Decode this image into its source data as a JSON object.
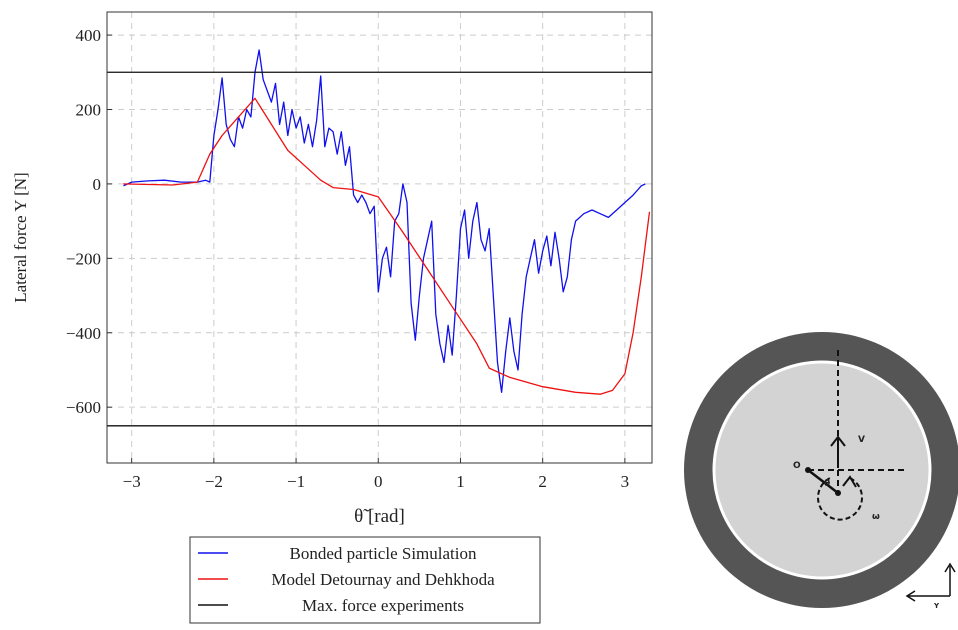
{
  "chart_data": {
    "type": "line",
    "xlabel": "θ̃ [rad]",
    "ylabel": "Lateral force Y [N]",
    "xlim": [
      -3.3,
      3.33
    ],
    "ylim": [
      -750,
      462
    ],
    "xticks": [
      {
        "value": -3,
        "label": "−3"
      },
      {
        "value": -2,
        "label": "−2"
      },
      {
        "value": -1,
        "label": "−1"
      },
      0,
      1,
      2,
      3
    ],
    "yticks": [
      {
        "value": -600,
        "label": "−600"
      },
      {
        "value": -400,
        "label": "−400"
      },
      {
        "value": -200,
        "label": "−200"
      },
      0,
      200,
      400
    ],
    "grid": true,
    "legend": "below",
    "series": [
      {
        "name": "Bonded particle Simulation",
        "color": "#1010ee",
        "x": [
          -3.1,
          -3.0,
          -2.8,
          -2.6,
          -2.4,
          -2.2,
          -2.1,
          -2.05,
          -2.0,
          -1.95,
          -1.9,
          -1.85,
          -1.8,
          -1.75,
          -1.7,
          -1.65,
          -1.6,
          -1.55,
          -1.5,
          -1.45,
          -1.4,
          -1.35,
          -1.3,
          -1.25,
          -1.2,
          -1.15,
          -1.1,
          -1.05,
          -1.0,
          -0.95,
          -0.9,
          -0.85,
          -0.8,
          -0.75,
          -0.7,
          -0.65,
          -0.6,
          -0.55,
          -0.5,
          -0.45,
          -0.4,
          -0.35,
          -0.3,
          -0.25,
          -0.2,
          -0.15,
          -0.1,
          -0.05,
          0,
          0.05,
          0.1,
          0.15,
          0.2,
          0.25,
          0.3,
          0.35,
          0.4,
          0.45,
          0.5,
          0.55,
          0.6,
          0.65,
          0.7,
          0.75,
          0.8,
          0.85,
          0.9,
          0.95,
          1.0,
          1.05,
          1.1,
          1.15,
          1.2,
          1.25,
          1.3,
          1.35,
          1.4,
          1.45,
          1.5,
          1.55,
          1.6,
          1.65,
          1.7,
          1.75,
          1.8,
          1.85,
          1.9,
          1.95,
          2.0,
          2.05,
          2.1,
          2.15,
          2.2,
          2.25,
          2.3,
          2.35,
          2.4,
          2.5,
          2.6,
          2.7,
          2.8,
          2.9,
          3.0,
          3.1,
          3.2,
          3.25
        ],
        "values": [
          -5,
          5,
          8,
          10,
          5,
          5,
          10,
          5,
          130,
          200,
          285,
          160,
          120,
          100,
          180,
          150,
          200,
          180,
          300,
          360,
          280,
          250,
          220,
          270,
          160,
          220,
          130,
          200,
          150,
          180,
          110,
          160,
          100,
          170,
          290,
          100,
          150,
          140,
          80,
          140,
          50,
          100,
          -30,
          -50,
          -30,
          -50,
          -80,
          -60,
          -290,
          -200,
          -170,
          -250,
          -100,
          -80,
          0,
          -50,
          -320,
          -420,
          -300,
          -200,
          -150,
          -100,
          -350,
          -430,
          -480,
          -380,
          -460,
          -300,
          -120,
          -70,
          -200,
          -100,
          -50,
          -150,
          -180,
          -120,
          -300,
          -480,
          -560,
          -450,
          -360,
          -450,
          -500,
          -350,
          -250,
          -200,
          -150,
          -240,
          -180,
          -140,
          -220,
          -130,
          -200,
          -290,
          -250,
          -150,
          -100,
          -80,
          -70,
          -80,
          -90,
          -70,
          -50,
          -30,
          -5,
          0
        ]
      },
      {
        "name": "Model Detournay and Dehkhoda",
        "color": "#ee1111",
        "x": [
          -3.1,
          -2.5,
          -2.2,
          -2.05,
          -1.9,
          -1.7,
          -1.5,
          -1.3,
          -1.1,
          -0.9,
          -0.7,
          -0.55,
          -0.3,
          0,
          0.3,
          0.6,
          0.9,
          1.2,
          1.35,
          1.6,
          2.0,
          2.4,
          2.7,
          2.85,
          3.0,
          3.1,
          3.2,
          3.3
        ],
        "values": [
          0,
          -3,
          5,
          80,
          130,
          180,
          230,
          160,
          90,
          50,
          10,
          -10,
          -15,
          -35,
          -130,
          -230,
          -330,
          -430,
          -495,
          -520,
          -545,
          -560,
          -565,
          -555,
          -510,
          -400,
          -250,
          -75
        ]
      },
      {
        "name": "Max. force experiments",
        "color": "#111111",
        "kind": "hline",
        "values": [
          300,
          -650
        ]
      }
    ]
  },
  "diagram": {
    "labels": {
      "origin": "O",
      "angle": "θ",
      "velocity": "V",
      "rotation": "ω",
      "axis": "Y"
    }
  }
}
